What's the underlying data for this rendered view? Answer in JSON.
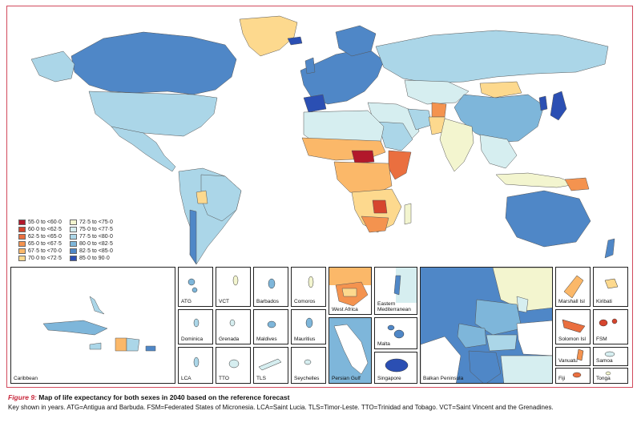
{
  "legend": {
    "items": [
      {
        "label": "55·0 to <60·0",
        "color": "#b2182b"
      },
      {
        "label": "60·0 to <62·5",
        "color": "#d6452e"
      },
      {
        "label": "62·5 to <65·0",
        "color": "#ea6f3f"
      },
      {
        "label": "65·0 to <67·5",
        "color": "#f4934f"
      },
      {
        "label": "67·5 to <70·0",
        "color": "#fbb869"
      },
      {
        "label": "70·0 to <72·5",
        "color": "#fdd98e"
      },
      {
        "label": "72·5 to <75·0",
        "color": "#f3f5cf"
      },
      {
        "label": "75·0 to <77·5",
        "color": "#d6eef0"
      },
      {
        "label": "77·5 to <80·0",
        "color": "#abd6e8"
      },
      {
        "label": "80·0 to <82·5",
        "color": "#7eb6da"
      },
      {
        "label": "82·5 to <85·0",
        "color": "#4f87c7"
      },
      {
        "label": "85·0 to 90·0",
        "color": "#2b4fb3"
      }
    ]
  },
  "insets": {
    "caribbean": "Caribbean",
    "atg": "ATG",
    "vct": "VCT",
    "barbados": "Barbados",
    "comoros": "Comoros",
    "dominica": "Dominica",
    "grenada": "Grenada",
    "maldives": "Maldives",
    "mauritius": "Mauritius",
    "lca": "LCA",
    "tto": "TTO",
    "tls": "TLS",
    "seychelles": "Seychelles",
    "west_africa": "West Africa",
    "eastern_med": "Eastern Mediterranean",
    "persian_gulf": "Persian Gulf",
    "malta": "Malta",
    "singapore": "Singapore",
    "balkan": "Balkan Peninsula",
    "marshall": "Marshall Isl",
    "kiribati": "Kiribati",
    "solomon": "Solomon Isl",
    "fsm": "FSM",
    "vanuatu": "Vanuatu",
    "samoa": "Samoa",
    "fiji": "Fiji",
    "tonga": "Tonga"
  },
  "caption": {
    "figure_label": "Figure 9:",
    "title": " Map of life expectancy for both sexes in 2040 based on the reference forecast",
    "key": "Key shown in years. ATG=Antigua and Barbuda. FSM=Federated States of Micronesia. LCA=Saint Lucia. TLS=Timor-Leste. TTO=Trinidad and Tobago. VCT=Saint Vincent and the Grenadines."
  }
}
